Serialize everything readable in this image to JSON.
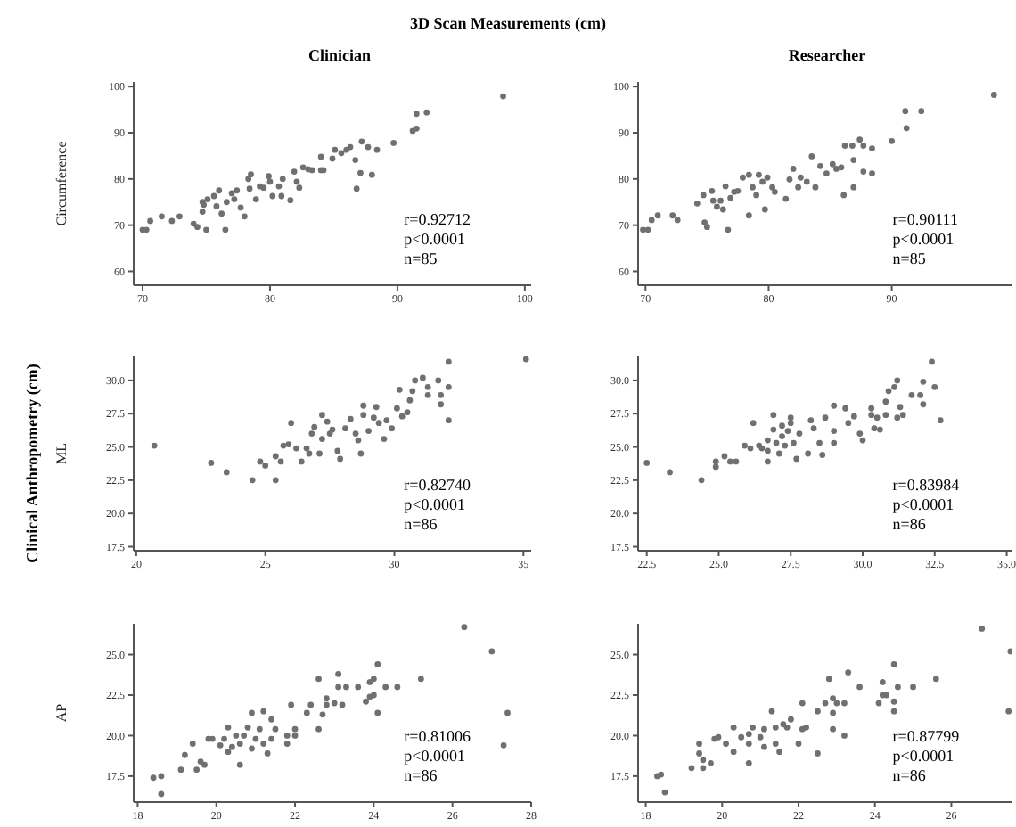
{
  "chart_data": [
    {
      "type": "scatter",
      "title": "3D Scan Measurements (cm)",
      "subtitle": "Clinician",
      "ylabel": "Circumference",
      "marker": "circle",
      "color": "#707070",
      "xlim": [
        69.3,
        100.5
      ],
      "xticks": [
        70,
        80,
        90,
        100
      ],
      "ylim": [
        57,
        101
      ],
      "yticks": [
        60,
        70,
        80,
        90,
        100
      ],
      "x": [
        70,
        70.3,
        70.6,
        71.5,
        72.3,
        72.9,
        74,
        74.3,
        75,
        74.7,
        74.8,
        74.7,
        75.1,
        75.6,
        76,
        75.8,
        76.5,
        76.2,
        76.6,
        77,
        77.4,
        77.7,
        78,
        77.2,
        78.3,
        78.5,
        78.4,
        78.9,
        79.2,
        79.5,
        79.9,
        80,
        80.2,
        80.7,
        80.9,
        81,
        81.6,
        81.9,
        82.1,
        82.3,
        82.6,
        83,
        83.3,
        84,
        84,
        84.2,
        84.9,
        85.1,
        85.6,
        86,
        86.3,
        86.7,
        86.8,
        87.1,
        87.2,
        87.7,
        88,
        88.4,
        89.7,
        91.2,
        91.5,
        91.5,
        92.3,
        98.3
      ],
      "values": [
        69,
        69,
        70.9,
        71.9,
        70.9,
        71.9,
        70.3,
        69.6,
        69,
        72.9,
        74.4,
        75,
        75.6,
        76.3,
        77.5,
        74.1,
        69,
        72.5,
        75,
        76.9,
        77.5,
        73.8,
        71.9,
        75.6,
        80,
        81,
        77.9,
        75.6,
        78.4,
        78.1,
        80.6,
        79.4,
        76.3,
        78.4,
        76.3,
        80,
        75.4,
        81.6,
        79.4,
        78.1,
        82.5,
        82.1,
        81.9,
        81.9,
        84.8,
        81.9,
        84.4,
        86.3,
        85.6,
        86.3,
        86.9,
        84.1,
        77.9,
        81.3,
        88.1,
        86.9,
        80.9,
        86.3,
        87.8,
        90.4,
        90.9,
        94.1,
        94.4,
        97.9
      ],
      "annotations": [
        "r=0.92712",
        "p<0.0001",
        "n=85"
      ]
    },
    {
      "type": "scatter",
      "subtitle": "Researcher",
      "marker": "circle",
      "color": "#707070",
      "xlim": [
        69.4,
        99.8
      ],
      "xticks": [
        70,
        80,
        90
      ],
      "ylim": [
        57,
        101
      ],
      "yticks": [
        60,
        70,
        80,
        90,
        100
      ],
      "x": [
        69.8,
        70.2,
        70.5,
        71,
        72.2,
        72.6,
        74.2,
        74.7,
        74.8,
        75,
        75.4,
        75.5,
        75.8,
        76.1,
        76.3,
        76.5,
        76.7,
        76.9,
        77.2,
        77.5,
        77.9,
        78.4,
        78.4,
        78.7,
        79,
        79.2,
        79.5,
        79.7,
        79.9,
        80.3,
        80.5,
        81.4,
        81.7,
        82,
        82.4,
        82.6,
        83.1,
        83.5,
        83.8,
        84.2,
        84.7,
        85.2,
        85.5,
        85.9,
        86.1,
        86.2,
        86.8,
        86.9,
        86.9,
        87.4,
        87.7,
        87.7,
        88.4,
        88.4,
        90,
        91.2,
        91.1,
        92.4,
        98.3
      ],
      "values": [
        69,
        69,
        71.1,
        72.1,
        72.1,
        71.1,
        74.7,
        76.5,
        70.6,
        69.6,
        77.4,
        75.3,
        74,
        75.3,
        73.4,
        78.4,
        69,
        75.9,
        77.2,
        77.4,
        80.3,
        80.9,
        72.1,
        78.2,
        76.5,
        80.9,
        79.4,
        73.4,
        80.3,
        78.2,
        77.2,
        75.7,
        79.9,
        82.2,
        78.2,
        80.3,
        79.4,
        84.9,
        78.2,
        82.8,
        81.2,
        83.2,
        82.2,
        82.5,
        76.5,
        87.2,
        87.2,
        84.1,
        78.2,
        88.5,
        87.2,
        81.6,
        86.6,
        81.2,
        88.2,
        91,
        94.7,
        94.7,
        98.2
      ],
      "annotations": [
        "r=0.90111",
        "p<0.0001",
        "n=85"
      ]
    },
    {
      "type": "scatter",
      "ylabel": "ML",
      "marker": "circle",
      "color": "#707070",
      "xlim": [
        19.9,
        35.3
      ],
      "xticks": [
        20,
        25,
        30,
        35
      ],
      "ylim": [
        17.2,
        31.8
      ],
      "yticks": [
        {
          "value": 17.5,
          "label": "17.5"
        },
        {
          "value": 20,
          "label": "20.0"
        },
        {
          "value": 22.5,
          "label": "22.5"
        },
        {
          "value": 25,
          "label": "25.0"
        },
        {
          "value": 27.5,
          "label": "27.5"
        },
        {
          "value": 30,
          "label": "30.0"
        }
      ],
      "x": [
        20.7,
        22.9,
        23.5,
        24.5,
        24.8,
        25,
        25.4,
        25.4,
        25.6,
        25.7,
        25.9,
        26,
        26.2,
        26.4,
        26.6,
        26.7,
        26.8,
        26.9,
        27.1,
        27.2,
        27.2,
        27.4,
        27.5,
        27.6,
        27.8,
        27.9,
        28.1,
        28.3,
        28.5,
        28.6,
        28.7,
        28.8,
        28.8,
        29,
        29.2,
        29.3,
        29.4,
        29.6,
        29.7,
        29.9,
        30.1,
        30.2,
        30.3,
        30.5,
        30.6,
        30.7,
        30.8,
        31.1,
        31.3,
        31.3,
        31.7,
        31.8,
        31.8,
        32.1,
        32.1,
        32.1,
        35.1
      ],
      "values": [
        25.1,
        23.8,
        23.1,
        22.5,
        23.9,
        23.6,
        22.5,
        24.3,
        23.9,
        25.1,
        25.2,
        26.8,
        24.9,
        23.9,
        24.9,
        24.5,
        26,
        26.5,
        24.5,
        25.6,
        27.4,
        26.9,
        26,
        26.3,
        24.7,
        24.1,
        26.4,
        27.1,
        26,
        25.5,
        24.5,
        28.1,
        27.4,
        26.2,
        27.2,
        28,
        26.8,
        25.6,
        27,
        26.4,
        27.9,
        29.3,
        27.3,
        27.6,
        28.5,
        29.2,
        30,
        30.2,
        29.5,
        28.9,
        30,
        28.9,
        28.2,
        29.5,
        31.4,
        27,
        31.6
      ],
      "annotations": [
        "r=0.82740",
        "p<0.0001",
        "n=86",
        "Clinical Anthropometry (cm)"
      ]
    },
    {
      "type": "scatter",
      "marker": "circle",
      "color": "#707070",
      "xlim": [
        22.2,
        35.2
      ],
      "xticks": [
        22.5,
        {
          "value": 25,
          "label": "25.0"
        },
        27.5,
        {
          "value": 30,
          "label": "30.0"
        },
        32.5,
        {
          "value": 35,
          "label": "35.0"
        }
      ],
      "ylim": [
        17.2,
        31.8
      ],
      "yticks": [
        {
          "value": 17.5,
          "label": "17.5"
        },
        {
          "value": 20,
          "label": "20.0"
        },
        {
          "value": 22.5,
          "label": "22.5"
        },
        {
          "value": 25,
          "label": "25.0"
        },
        {
          "value": 27.5,
          "label": "27.5"
        },
        {
          "value": 30,
          "label": "30.0"
        }
      ],
      "x": [
        22.5,
        23.3,
        24.4,
        24.9,
        24.9,
        25.2,
        25.4,
        25.6,
        25.9,
        26.1,
        26.2,
        26.4,
        26.5,
        26.7,
        26.7,
        26.7,
        26.9,
        26.9,
        27,
        27.1,
        27.2,
        27.2,
        27.3,
        27.4,
        27.5,
        27.5,
        27.6,
        27.7,
        27.8,
        28.1,
        28.2,
        28.3,
        28.5,
        28.6,
        28.7,
        29,
        29,
        29,
        29.4,
        29.5,
        29.7,
        29.9,
        30,
        30.3,
        30.3,
        30.4,
        30.5,
        30.6,
        30.8,
        30.8,
        30.9,
        31.1,
        31.2,
        31.2,
        31.3,
        31.4,
        31.7,
        32,
        32.1,
        32.1,
        32.4,
        32.5,
        32.7
      ],
      "values": [
        23.8,
        23.1,
        22.5,
        23.5,
        23.9,
        24.3,
        23.9,
        23.9,
        25.1,
        24.9,
        26.8,
        25.1,
        24.9,
        24.7,
        23.9,
        25.5,
        26.3,
        27.4,
        25.3,
        24.5,
        26.6,
        25.8,
        25.1,
        26.2,
        27.2,
        26.8,
        25.3,
        24.1,
        26,
        24.5,
        27,
        26.4,
        25.3,
        24.4,
        27.2,
        28.1,
        26.2,
        25.3,
        27.9,
        26.8,
        27.3,
        26,
        25.5,
        27.4,
        27.9,
        26.4,
        27.2,
        26.3,
        27.4,
        28.4,
        29.2,
        29.5,
        30,
        27.2,
        28,
        27.4,
        28.9,
        28.9,
        28.2,
        29.9,
        31.4,
        29.5,
        27
      ],
      "annotations": [
        "r=0.83984",
        "p<0.0001",
        "n=86"
      ]
    },
    {
      "type": "scatter",
      "ylabel": "AP",
      "marker": "circle",
      "color": "#707070",
      "xlim": [
        17.9,
        28
      ],
      "xticks": [
        18,
        20,
        22,
        24,
        26,
        28
      ],
      "ylim": [
        15.9,
        26.9
      ],
      "yticks": [
        {
          "value": 17.5,
          "label": "17.5"
        },
        {
          "value": 20,
          "label": "20.0"
        },
        {
          "value": 22.5,
          "label": "22.5"
        },
        {
          "value": 25,
          "label": "25.0"
        }
      ],
      "x": [
        18.4,
        18.6,
        18.6,
        19.1,
        19.2,
        19.4,
        19.5,
        19.6,
        19.7,
        19.8,
        19.9,
        20.1,
        20.2,
        20.3,
        20.3,
        20.4,
        20.5,
        20.6,
        20.6,
        20.7,
        20.8,
        20.9,
        20.9,
        21,
        21.1,
        21.2,
        21.2,
        21.3,
        21.4,
        21.4,
        21.5,
        21.8,
        21.8,
        21.9,
        22,
        22,
        22.3,
        22.4,
        22.6,
        22.6,
        22.7,
        22.8,
        22.8,
        23,
        23.1,
        23.1,
        23.2,
        23.3,
        23.6,
        23.8,
        23.9,
        23.9,
        24,
        24,
        24.1,
        24.1,
        24.3,
        24.6,
        25.2,
        26.3,
        27,
        27.4,
        27.3
      ],
      "values": [
        17.4,
        17.5,
        16.4,
        17.9,
        18.8,
        19.5,
        17.9,
        18.4,
        18.2,
        19.8,
        19.8,
        19.4,
        19.8,
        20.5,
        19,
        19.3,
        20,
        18.2,
        19.5,
        20,
        20.5,
        19.2,
        21.4,
        19.8,
        20.4,
        21.5,
        19.5,
        18.9,
        19.8,
        21,
        20.4,
        20,
        19.5,
        21.9,
        20.4,
        20,
        21.4,
        21.9,
        20.4,
        23.5,
        21.3,
        22.3,
        21.9,
        22,
        23,
        23.8,
        21.9,
        23,
        23,
        22.1,
        22.4,
        23.3,
        22.5,
        23.5,
        24.4,
        21.4,
        23,
        23,
        23.5,
        26.7,
        25.2,
        21.4,
        19.4
      ],
      "annotations": [
        "r=0.81006",
        "p<0.0001",
        "n=86"
      ]
    },
    {
      "type": "scatter",
      "marker": "circle",
      "color": "#707070",
      "xlim": [
        17.8,
        27.6
      ],
      "xticks": [
        18,
        20,
        22,
        24,
        26
      ],
      "ylim": [
        15.9,
        26.9
      ],
      "yticks": [
        {
          "value": 17.5,
          "label": "17.5"
        },
        {
          "value": 20,
          "label": "20.0"
        },
        {
          "value": 22.5,
          "label": "22.5"
        },
        {
          "value": 25,
          "label": "25.0"
        }
      ],
      "x": [
        18.3,
        18.4,
        18.5,
        19.2,
        19.4,
        19.4,
        19.5,
        19.5,
        19.7,
        19.8,
        19.9,
        20.1,
        20.3,
        20.3,
        20.5,
        20.7,
        20.7,
        20.7,
        20.8,
        21,
        21.1,
        21.1,
        21.3,
        21.4,
        21.4,
        21.5,
        21.6,
        21.7,
        21.8,
        22,
        22.1,
        22.1,
        22.2,
        22.5,
        22.5,
        22.7,
        22.8,
        22.9,
        22.9,
        22.9,
        23,
        23.2,
        23.2,
        23.3,
        23.6,
        24.1,
        24.2,
        24.2,
        24.3,
        24.5,
        24.5,
        24.5,
        24.6,
        25,
        25.6,
        26.8,
        27.5,
        27.55
      ],
      "values": [
        17.5,
        17.6,
        16.5,
        18,
        19.5,
        18.9,
        18,
        18.5,
        18.3,
        19.8,
        19.9,
        19.5,
        20.5,
        19,
        19.9,
        19.5,
        20.1,
        18.3,
        20.5,
        19.9,
        19.3,
        20.4,
        21.5,
        20.5,
        19.5,
        19,
        20.7,
        20.5,
        21,
        19.5,
        20.4,
        22,
        20.5,
        21.5,
        18.9,
        22,
        23.5,
        22.3,
        21.4,
        20.4,
        22,
        22,
        20,
        23.9,
        23,
        22,
        22.5,
        23.3,
        22.5,
        24.4,
        21.5,
        22.1,
        23,
        23,
        23.5,
        26.6,
        21.5,
        25.2
      ],
      "annotations": [
        "r=0.87799",
        "p<0.0001",
        "n=86"
      ]
    }
  ]
}
